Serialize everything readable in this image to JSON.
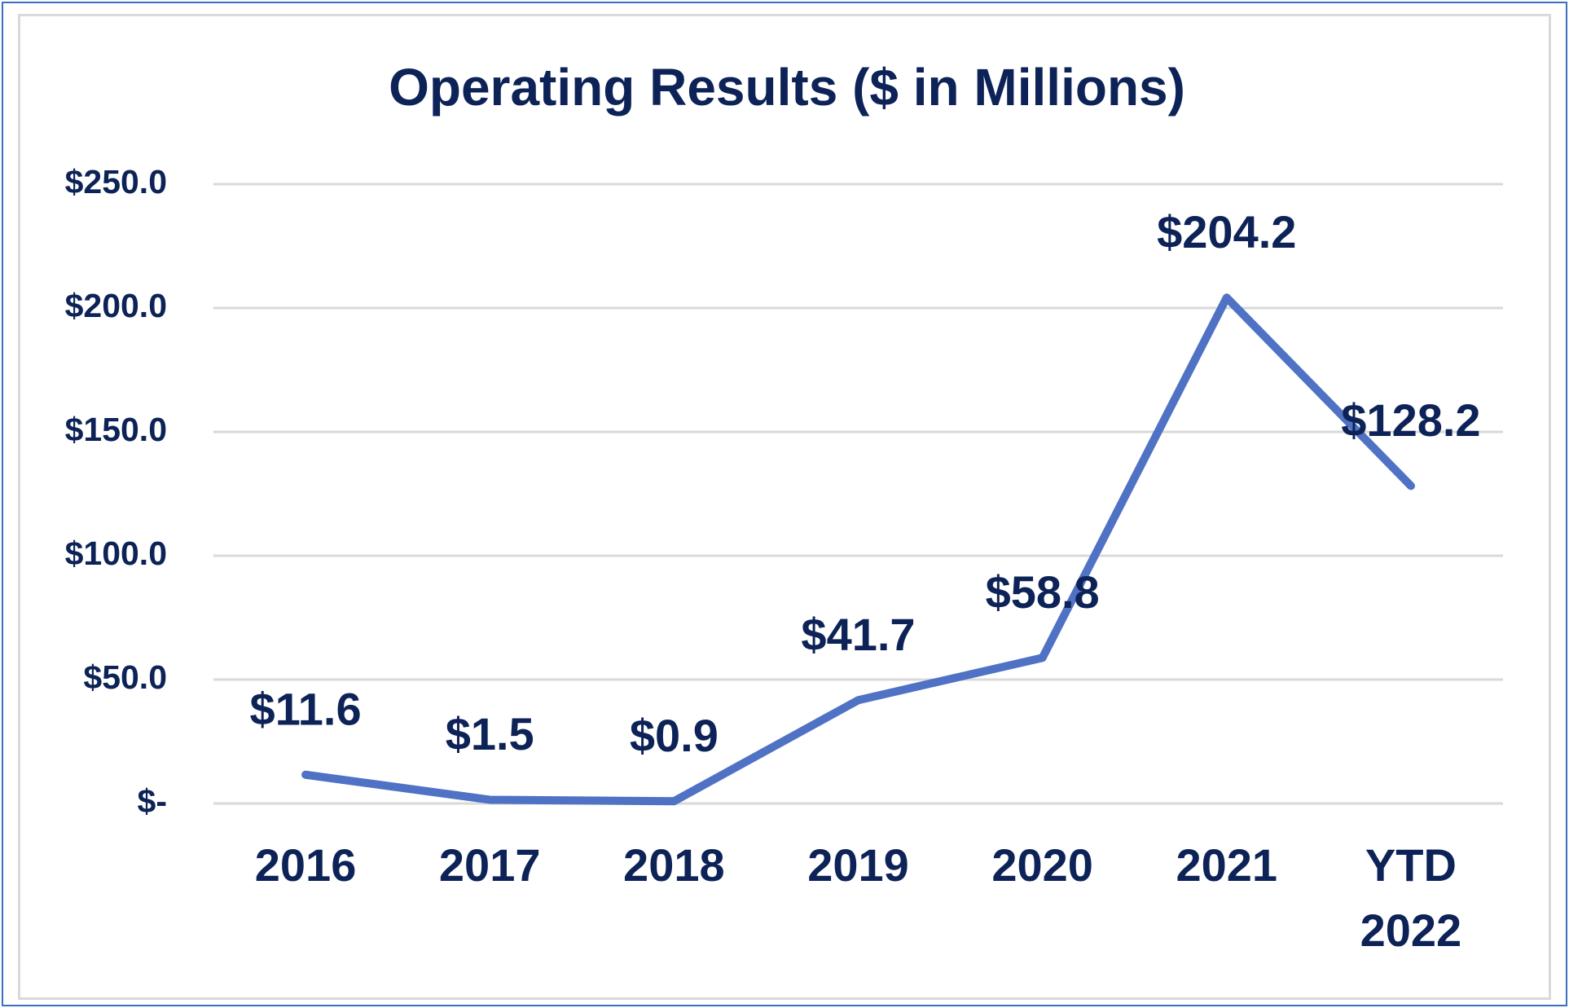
{
  "chart_data": {
    "type": "line",
    "title": "Operating Results ($ in Millions)",
    "categories": [
      "2016",
      "2017",
      "2018",
      "2019",
      "2020",
      "2021",
      "YTD 2022"
    ],
    "series": [
      {
        "name": "Operating Results",
        "color": "#4f72c4",
        "values": [
          11.6,
          1.5,
          0.9,
          41.7,
          58.8,
          204.2,
          128.2
        ],
        "value_labels": [
          "$11.6",
          "$1.5",
          "$0.9",
          "$41.7",
          "$58.8",
          "$204.2",
          "$128.2"
        ]
      }
    ],
    "ylim": [
      0,
      250
    ],
    "yticks": [
      {
        "value": 0,
        "label": "$-"
      },
      {
        "value": 50,
        "label": "$50.0"
      },
      {
        "value": 100,
        "label": "$100.0"
      },
      {
        "value": 150,
        "label": "$150.0"
      },
      {
        "value": 200,
        "label": "$200.0"
      },
      {
        "value": 250,
        "label": "$250.0"
      }
    ],
    "grid": true
  }
}
